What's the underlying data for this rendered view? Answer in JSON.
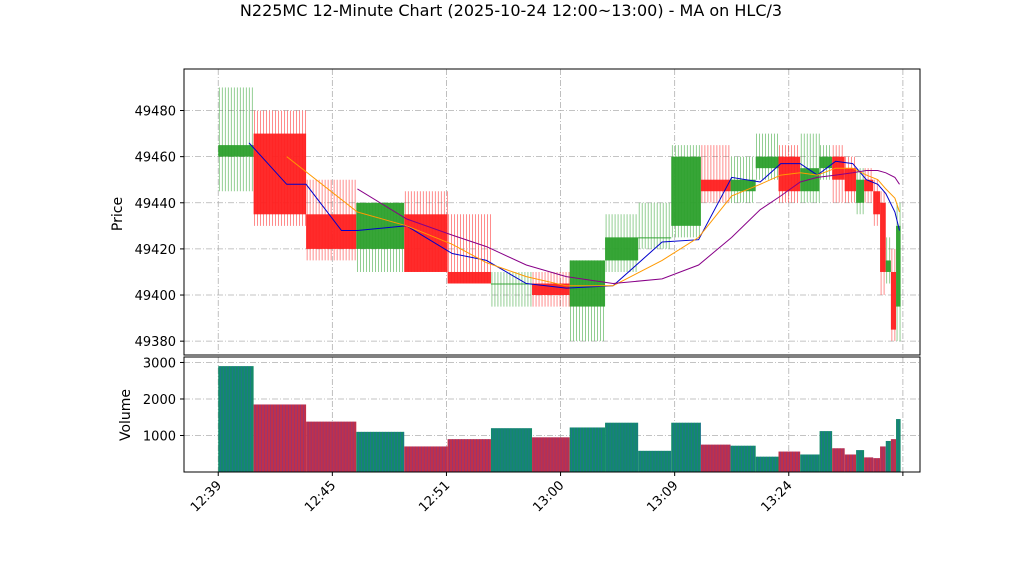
{
  "chart_data": {
    "type": "candlestick",
    "title": "N225MC 12-Minute Chart (2025-10-24 12:00~13:00) - MA on HLC/3",
    "price_panel": {
      "ylabel": "Price",
      "ylim": [
        49374,
        49498
      ],
      "yticks": [
        49380,
        49400,
        49420,
        49440,
        49460,
        49480
      ],
      "ytick_labels": [
        "49380",
        "49400",
        "49420",
        "49440",
        "49460",
        "49480"
      ]
    },
    "volume_panel": {
      "ylabel": "Volume",
      "ylim": [
        0,
        3150
      ],
      "yticks": [
        1000,
        2000,
        3000
      ],
      "ytick_labels": [
        "1000",
        "2000",
        "3000"
      ]
    },
    "xlim": [
      -3,
      61.5
    ],
    "xticks": [
      0,
      10,
      20,
      30,
      40,
      50,
      60
    ],
    "xtick_labels": [
      "12:39",
      "12:45",
      "12:51",
      "13:00",
      "13:09",
      "13:24",
      ""
    ],
    "grid": true,
    "colors": {
      "up": "#2ca02c",
      "down": "#ff2020",
      "vol_up": "#138a6a",
      "vol_down": "#c0304a",
      "ma_short": "#0000cc",
      "ma_mid": "#ff9900",
      "ma_long": "#880088"
    },
    "candles": [
      {
        "start": 0,
        "width": 3.1,
        "open": 49460,
        "high": 49490,
        "low": 49445,
        "close": 49465,
        "volume": 2900
      },
      {
        "start": 3.1,
        "width": 4.6,
        "open": 49470,
        "high": 49480,
        "low": 49430,
        "close": 49435,
        "volume": 1850
      },
      {
        "start": 7.7,
        "width": 4.4,
        "open": 49435,
        "high": 49450,
        "low": 49415,
        "close": 49420,
        "volume": 1380
      },
      {
        "start": 12.1,
        "width": 4.2,
        "open": 49420,
        "high": 49440,
        "low": 49410,
        "close": 49440,
        "volume": 1100
      },
      {
        "start": 16.3,
        "width": 3.8,
        "open": 49435,
        "high": 49445,
        "low": 49410,
        "close": 49410,
        "volume": 700
      },
      {
        "start": 20.1,
        "width": 3.8,
        "open": 49410,
        "high": 49435,
        "low": 49405,
        "close": 49405,
        "volume": 900
      },
      {
        "start": 23.9,
        "width": 3.6,
        "open": 49405,
        "high": 49410,
        "low": 49395,
        "close": 49405,
        "volume": 1200
      },
      {
        "start": 27.5,
        "width": 3.3,
        "open": 49405,
        "high": 49410,
        "low": 49395,
        "close": 49400,
        "volume": 950
      },
      {
        "start": 30.8,
        "width": 3.1,
        "open": 49395,
        "high": 49415,
        "low": 49380,
        "close": 49415,
        "volume": 1220
      },
      {
        "start": 33.9,
        "width": 2.9,
        "open": 49415,
        "high": 49435,
        "low": 49410,
        "close": 49425,
        "volume": 1350
      },
      {
        "start": 36.8,
        "width": 2.9,
        "open": 49425,
        "high": 49440,
        "low": 49420,
        "close": 49425,
        "volume": 580
      },
      {
        "start": 39.7,
        "width": 2.6,
        "open": 49430,
        "high": 49465,
        "low": 49425,
        "close": 49460,
        "volume": 1350
      },
      {
        "start": 42.3,
        "width": 2.6,
        "open": 49450,
        "high": 49465,
        "low": 49440,
        "close": 49445,
        "volume": 750
      },
      {
        "start": 44.9,
        "width": 2.2,
        "open": 49445,
        "high": 49460,
        "low": 49440,
        "close": 49450,
        "volume": 720
      },
      {
        "start": 47.1,
        "width": 2.0,
        "open": 49455,
        "high": 49470,
        "low": 49450,
        "close": 49460,
        "volume": 420
      },
      {
        "start": 49.1,
        "width": 1.9,
        "open": 49460,
        "high": 49465,
        "low": 49440,
        "close": 49445,
        "volume": 560
      },
      {
        "start": 51.0,
        "width": 1.7,
        "open": 49445,
        "high": 49470,
        "low": 49440,
        "close": 49455,
        "volume": 480
      },
      {
        "start": 52.7,
        "width": 1.1,
        "open": 49455,
        "high": 49465,
        "low": 49450,
        "close": 49460,
        "volume": 1120
      },
      {
        "start": 53.8,
        "width": 1.1,
        "open": 49460,
        "high": 49465,
        "low": 49440,
        "close": 49450,
        "volume": 650
      },
      {
        "start": 54.9,
        "width": 1.0,
        "open": 49455,
        "high": 49460,
        "low": 49440,
        "close": 49445,
        "volume": 480
      },
      {
        "start": 55.9,
        "width": 0.7,
        "open": 49440,
        "high": 49455,
        "low": 49435,
        "close": 49450,
        "volume": 600
      },
      {
        "start": 56.6,
        "width": 0.8,
        "open": 49450,
        "high": 49455,
        "low": 49440,
        "close": 49445,
        "volume": 400
      },
      {
        "start": 57.4,
        "width": 0.6,
        "open": 49445,
        "high": 49450,
        "low": 49430,
        "close": 49435,
        "volume": 380
      },
      {
        "start": 58.0,
        "width": 0.5,
        "open": 49440,
        "high": 49445,
        "low": 49400,
        "close": 49410,
        "volume": 700
      },
      {
        "start": 58.5,
        "width": 0.45,
        "open": 49410,
        "high": 49425,
        "low": 49405,
        "close": 49415,
        "volume": 850
      },
      {
        "start": 58.95,
        "width": 0.45,
        "open": 49410,
        "high": 49420,
        "low": 49380,
        "close": 49385,
        "volume": 900
      },
      {
        "start": 59.4,
        "width": 0.4,
        "open": 49395,
        "high": 49440,
        "low": 49380,
        "close": 49430,
        "volume": 1450
      }
    ],
    "series": [
      {
        "x": [
          2.7,
          6.0,
          7.7,
          10.8,
          12.2,
          16.5,
          20.5,
          23.5,
          27.0,
          30.5,
          34.6,
          38.9,
          42.1,
          45.0,
          47.5,
          49.3,
          51.0,
          52.5,
          54.1,
          55.6,
          56.8,
          57.8,
          58.5,
          59.3,
          59.7
        ],
        "y": [
          49466,
          49448,
          49448,
          49428,
          49428,
          49430,
          49418,
          49415,
          49405,
          49403,
          49404,
          49423,
          49424,
          49451,
          49449,
          49457,
          49457,
          49452,
          49458,
          49457,
          49450,
          49448,
          49444,
          49436,
          49428
        ]
      },
      {
        "x": [
          6.0,
          12.2,
          16.5,
          20.5,
          23.5,
          27.0,
          30.5,
          34.6,
          38.9,
          42.1,
          45.0,
          47.5,
          49.3,
          51.0,
          52.5,
          54.1,
          55.6,
          56.8,
          57.8,
          58.5,
          59.3,
          59.7
        ],
        "y": [
          49460,
          49436,
          49430,
          49422,
          49414,
          49408,
          49404,
          49404,
          49415,
          49425,
          49443,
          49448,
          49452,
          49453,
          49452,
          49455,
          49455,
          49452,
          49450,
          49446,
          49442,
          49436
        ]
      },
      {
        "x": [
          12.2,
          16.5,
          20.5,
          23.5,
          27.0,
          30.5,
          34.6,
          38.9,
          42.1,
          45.0,
          47.5,
          49.3,
          51.0,
          52.5,
          54.1,
          55.6,
          56.8,
          57.8,
          58.5,
          59.3,
          59.7
        ],
        "y": [
          49446,
          49433,
          49426,
          49421,
          49413,
          49408,
          49405,
          49407,
          49413,
          49425,
          49437,
          49443,
          49449,
          49451,
          49452,
          49453,
          49454,
          49454,
          49453,
          49451,
          49448
        ]
      }
    ]
  }
}
